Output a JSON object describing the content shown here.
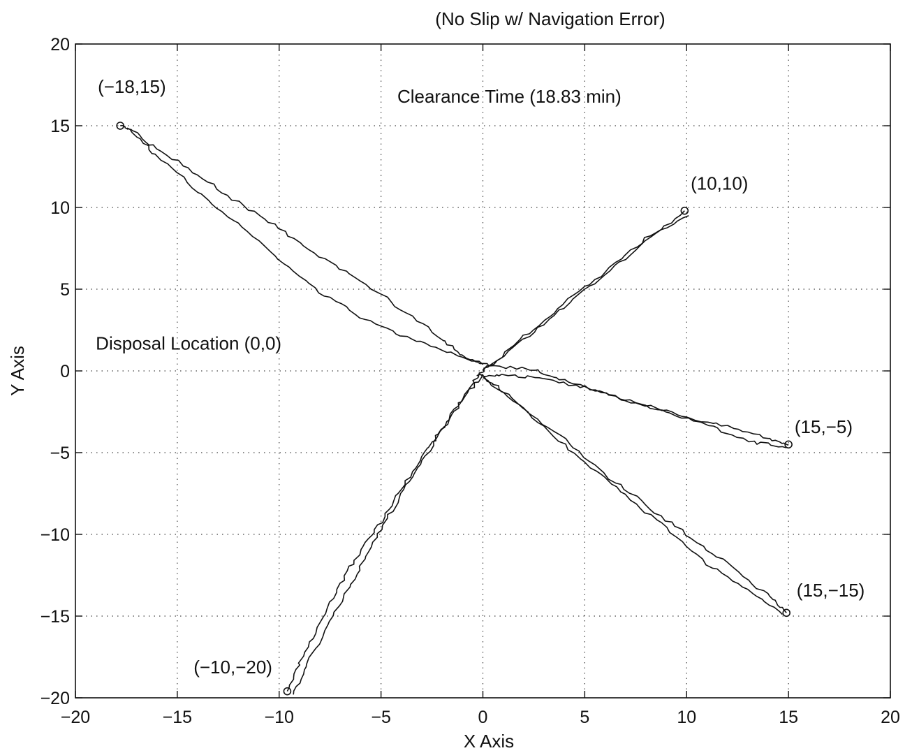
{
  "chart_data": {
    "type": "line",
    "title": "(No Slip w/ Navigation Error)",
    "xlabel": "X Axis",
    "ylabel": "Y Axis",
    "xlim": [
      -20,
      20
    ],
    "ylim": [
      -20,
      20
    ],
    "xticks": [
      -20,
      -15,
      -10,
      -5,
      0,
      5,
      10,
      15,
      20
    ],
    "yticks": [
      -20,
      -15,
      -10,
      -5,
      0,
      5,
      10,
      15,
      20
    ],
    "grid": true,
    "annotations": [
      {
        "text": "(-18,15)",
        "x": -18.9,
        "y": 17.0
      },
      {
        "text": "Clearance Time (18.83 min)",
        "x": -4.2,
        "y": 16.4
      },
      {
        "text": "(10,10)",
        "x": 10.2,
        "y": 11.1
      },
      {
        "text": "Disposal Location (0,0)",
        "x": -19.0,
        "y": 1.3
      },
      {
        "text": "(15,-5)",
        "x": 15.3,
        "y": -3.8
      },
      {
        "text": "(15,-15)",
        "x": 15.4,
        "y": -13.8
      },
      {
        "text": "(-10,-20)",
        "x": -14.2,
        "y": -18.5
      }
    ],
    "series": [
      {
        "target": [
          -18,
          15
        ],
        "out": [
          [
            0,
            0.4
          ],
          [
            -2,
            1.3
          ],
          [
            -4,
            2.2
          ],
          [
            -6,
            3.3
          ],
          [
            -8,
            4.8
          ],
          [
            -10,
            6.8
          ],
          [
            -12,
            9.0
          ],
          [
            -14,
            11.0
          ],
          [
            -16,
            13.2
          ],
          [
            -17.3,
            14.7
          ],
          [
            -17.8,
            15.0
          ]
        ],
        "back": [
          [
            -17.3,
            14.8
          ],
          [
            -16,
            13.6
          ],
          [
            -14,
            12.0
          ],
          [
            -12,
            10.3
          ],
          [
            -10,
            8.7
          ],
          [
            -8,
            7.0
          ],
          [
            -6,
            5.5
          ],
          [
            -4,
            3.8
          ],
          [
            -2,
            1.9
          ],
          [
            -0.8,
            0.8
          ],
          [
            0.3,
            0.3
          ]
        ]
      },
      {
        "target": [
          10,
          10
        ],
        "out": [
          [
            0,
            0
          ],
          [
            2,
            1.9
          ],
          [
            4,
            3.9
          ],
          [
            6,
            5.9
          ],
          [
            8,
            7.9
          ],
          [
            9.9,
            9.8
          ]
        ],
        "back": [
          [
            10.1,
            9.5
          ],
          [
            8,
            8.1
          ],
          [
            6,
            6.1
          ],
          [
            4,
            4.1
          ],
          [
            2,
            2.1
          ],
          [
            0.2,
            0.2
          ]
        ]
      },
      {
        "target": [
          15,
          -5
        ],
        "out": [
          [
            0.3,
            0.3
          ],
          [
            2.5,
            0.1
          ],
          [
            4,
            -0.6
          ],
          [
            6,
            -1.4
          ],
          [
            8,
            -2.1
          ],
          [
            10,
            -2.8
          ],
          [
            12,
            -3.4
          ],
          [
            14,
            -4.1
          ],
          [
            15,
            -4.5
          ]
        ],
        "back": [
          [
            14.9,
            -4.7
          ],
          [
            13,
            -4.3
          ],
          [
            11,
            -3.3
          ],
          [
            9,
            -2.5
          ],
          [
            7,
            -1.8
          ],
          [
            5,
            -1.0
          ],
          [
            3,
            -0.5
          ],
          [
            1,
            -0.2
          ],
          [
            -0.3,
            -0.3
          ]
        ]
      },
      {
        "target": [
          15,
          -15
        ],
        "out": [
          [
            0,
            -0.4
          ],
          [
            2,
            -2.3
          ],
          [
            4,
            -4.2
          ],
          [
            6,
            -6.3
          ],
          [
            8,
            -8.2
          ],
          [
            10,
            -10.0
          ],
          [
            12,
            -11.8
          ],
          [
            14,
            -13.7
          ],
          [
            14.9,
            -14.8
          ]
        ],
        "back": [
          [
            14.7,
            -14.9
          ],
          [
            13,
            -13.4
          ],
          [
            11,
            -11.8
          ],
          [
            9,
            -9.6
          ],
          [
            7,
            -7.6
          ],
          [
            5,
            -5.6
          ],
          [
            3,
            -3.4
          ],
          [
            1,
            -1.2
          ],
          [
            -0.2,
            -0.2
          ]
        ]
      },
      {
        "target": [
          -10,
          -20
        ],
        "out": [
          [
            0,
            -0.2
          ],
          [
            -1,
            -1.8
          ],
          [
            -2,
            -3.6
          ],
          [
            -3,
            -5.2
          ],
          [
            -4,
            -7.2
          ],
          [
            -5,
            -9.2
          ],
          [
            -6,
            -11.0
          ],
          [
            -7,
            -13.0
          ],
          [
            -8,
            -15.4
          ],
          [
            -9,
            -17.8
          ],
          [
            -9.6,
            -19.6
          ]
        ],
        "back": [
          [
            -9.3,
            -19.8
          ],
          [
            -8.6,
            -17.9
          ],
          [
            -7.6,
            -15.6
          ],
          [
            -6.6,
            -13.3
          ],
          [
            -5.6,
            -11.0
          ],
          [
            -4.6,
            -8.8
          ],
          [
            -3.6,
            -6.8
          ],
          [
            -2.5,
            -4.6
          ],
          [
            -1.4,
            -2.4
          ],
          [
            -0.4,
            -0.5
          ],
          [
            0.3,
            0.3
          ]
        ]
      }
    ],
    "end_marker_label": "circle"
  }
}
